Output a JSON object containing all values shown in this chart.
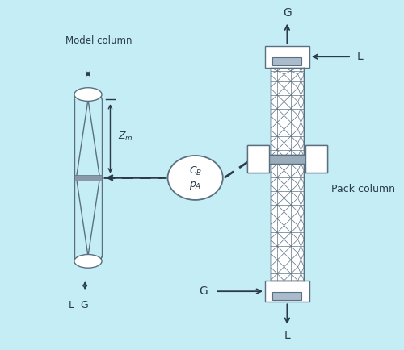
{
  "bg_color": "#c5edf5",
  "line_color": "#5a7080",
  "dark_color": "#2a3a48",
  "text_color": "#2a3a48",
  "figsize": [
    5.0,
    4.34
  ],
  "dpi": 100,
  "title": "Model column",
  "pack_title": "Pack column",
  "label_G": "G",
  "label_L": "L",
  "label_LG": "L  G"
}
